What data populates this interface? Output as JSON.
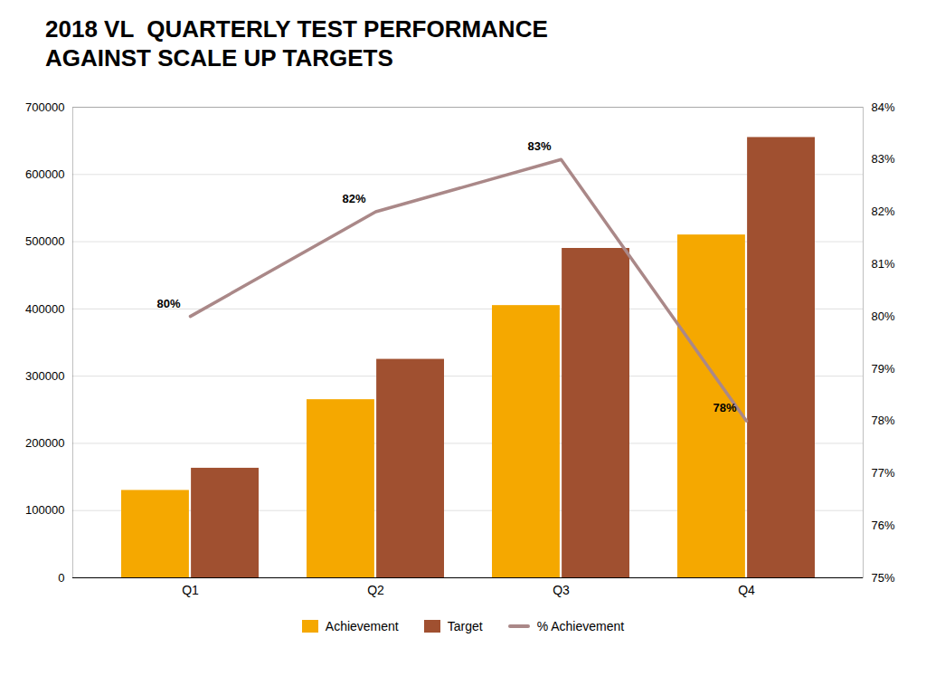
{
  "chart_data": {
    "type": "bar",
    "title": "2018 VL  QUARTERLY TEST PERFORMANCE\nAGAINST SCALE UP TARGETS",
    "categories": [
      "Q1",
      "Q2",
      "Q3",
      "Q4"
    ],
    "series": [
      {
        "name": "Achievement",
        "color": "#F5A800",
        "values": [
          130000,
          265000,
          405000,
          510000
        ]
      },
      {
        "name": "Target",
        "color": "#A05030",
        "values": [
          163000,
          325000,
          490000,
          655000
        ]
      },
      {
        "name": "% Achievement",
        "type": "line",
        "axis": "y2",
        "color": "#AA8888",
        "values": [
          0.8,
          0.82,
          0.83,
          0.78
        ],
        "data_labels": true,
        "value_labels": [
          "80%",
          "82%",
          "83%",
          "78%"
        ]
      }
    ],
    "ylim": [
      0,
      700000
    ],
    "yticks": [
      0,
      100000,
      200000,
      300000,
      400000,
      500000,
      600000,
      700000
    ],
    "y2lim": [
      0.75,
      0.84
    ],
    "y2ticks": [
      {
        "value": 0.75,
        "label": "75%"
      },
      {
        "value": 0.76,
        "label": "76%"
      },
      {
        "value": 0.77,
        "label": "77%"
      },
      {
        "value": 0.78,
        "label": "78%"
      },
      {
        "value": 0.79,
        "label": "79%"
      },
      {
        "value": 0.8,
        "label": "80%"
      },
      {
        "value": 0.81,
        "label": "81%"
      },
      {
        "value": 0.82,
        "label": "82%"
      },
      {
        "value": 0.83,
        "label": "83%"
      },
      {
        "value": 0.84,
        "label": "84%"
      }
    ],
    "grid": true,
    "legend": "bottom"
  }
}
